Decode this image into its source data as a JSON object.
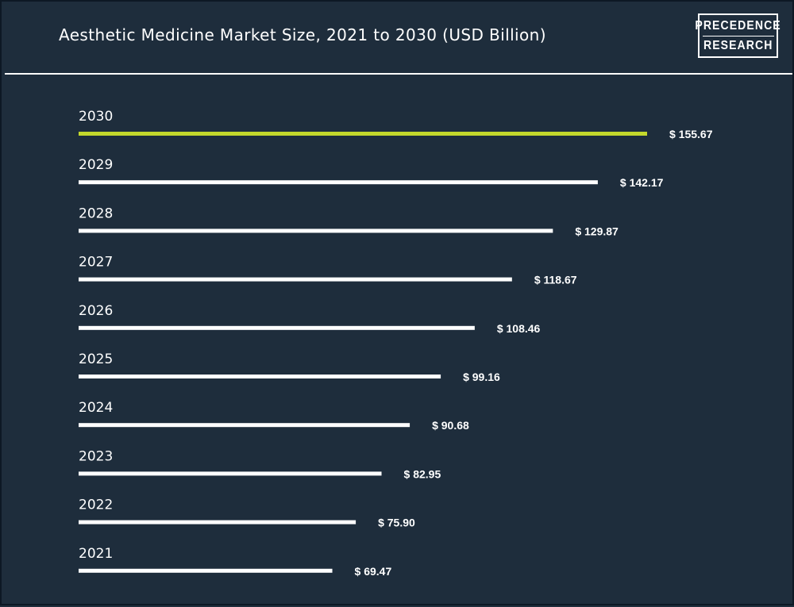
{
  "header": {
    "title": "Aesthetic Medicine Market Size, 2021 to 2030 (USD Billion)",
    "logo_line1": "PRECEDENCE",
    "logo_line2": "RESEARCH"
  },
  "colors": {
    "background": "#1e2d3c",
    "bar": "#ffffff",
    "highlight_bar": "#c3d82c",
    "text": "#ffffff"
  },
  "chart_data": {
    "type": "bar",
    "orientation": "horizontal",
    "title": "Aesthetic Medicine Market Size, 2021 to 2030 (USD Billion)",
    "xlabel": "",
    "ylabel": "",
    "categories": [
      "2030",
      "2029",
      "2028",
      "2027",
      "2026",
      "2025",
      "2024",
      "2023",
      "2022",
      "2021"
    ],
    "values": [
      155.67,
      142.17,
      129.87,
      118.67,
      108.46,
      99.16,
      90.68,
      82.95,
      75.9,
      69.47
    ],
    "value_labels": [
      "$ 155.67",
      "$ 142.17",
      "$ 129.87",
      "$ 118.67",
      "$ 108.46",
      "$ 99.16",
      "$ 90.68",
      "$ 82.95",
      "$ 75.90",
      "$ 69.47"
    ],
    "highlight_category": "2030",
    "grid": false,
    "legend": "none"
  }
}
